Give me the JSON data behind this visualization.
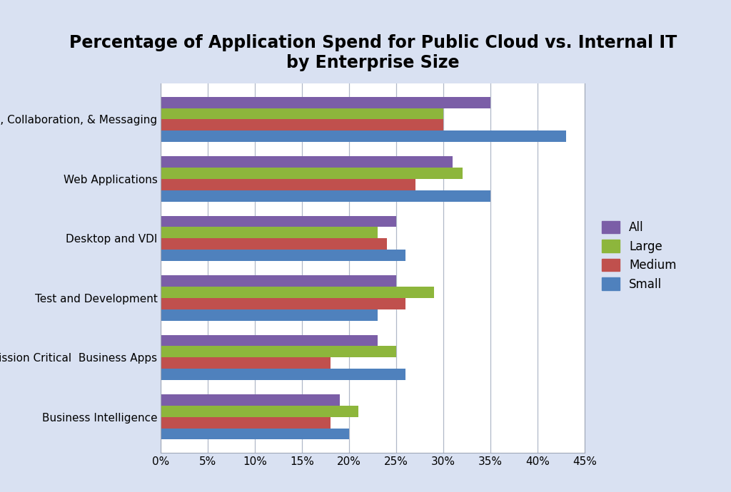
{
  "title": "Percentage of Application Spend for Public Cloud vs. Internal IT\nby Enterprise Size",
  "categories": [
    "Email, Collaboration, & Messaging",
    "Web Applications",
    "Desktop and VDI",
    "Test and Development",
    "Mission Critical  Business Apps",
    "Business Intelligence"
  ],
  "series": {
    "All": [
      35,
      31,
      25,
      25,
      23,
      19
    ],
    "Large": [
      30,
      32,
      23,
      29,
      25,
      21
    ],
    "Medium": [
      30,
      27,
      24,
      26,
      18,
      18
    ],
    "Small": [
      43,
      35,
      26,
      23,
      26,
      20
    ]
  },
  "series_order": [
    "All",
    "Large",
    "Medium",
    "Small"
  ],
  "colors": {
    "All": "#7B5EA7",
    "Large": "#8DB63C",
    "Medium": "#C0504D",
    "Small": "#4F81BD"
  },
  "xlim": [
    0,
    0.45
  ],
  "xticks": [
    0,
    0.05,
    0.1,
    0.15,
    0.2,
    0.25,
    0.3,
    0.35,
    0.4,
    0.45
  ],
  "xticklabels": [
    "0%",
    "5%",
    "10%",
    "15%",
    "20%",
    "25%",
    "30%",
    "35%",
    "40%",
    "45%"
  ],
  "background_color": "#D9E1F2",
  "plot_background": "#FFFFFF",
  "title_fontsize": 17,
  "tick_fontsize": 11,
  "label_fontsize": 11,
  "legend_fontsize": 12
}
